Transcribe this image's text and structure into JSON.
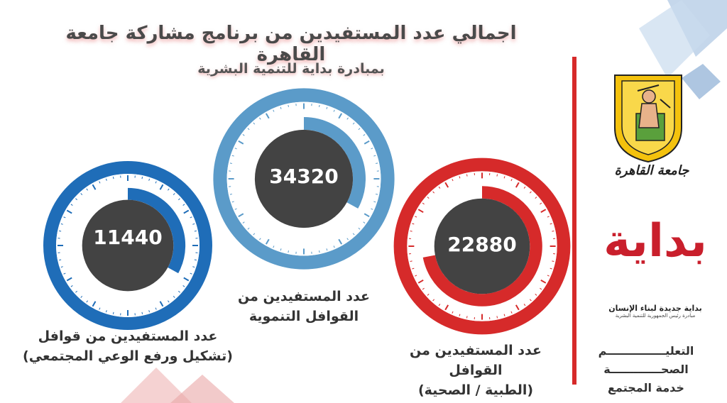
{
  "header": {
    "title": "اجمالي عدد المستفيدين من برنامج مشاركة جامعة القاهرة",
    "subtitle": "بمبادرة بداية للتنمية البشرية"
  },
  "gauges": [
    {
      "value": "11440",
      "caption_line1": "عدد المستفيدين من قوافل",
      "caption_line2": "(تشكيل ورفع الوعي المجتمعي)",
      "color": "#1f6db8",
      "fraction": 0.33
    },
    {
      "value": "34320",
      "caption_line1": "عدد المستفيدين من",
      "caption_line2": "القوافل التنموية",
      "color": "#5b9bc9",
      "fraction": 0.33
    },
    {
      "value": "22880",
      "caption_line1": "عدد المستفيدين من القوافل",
      "caption_line2": "(الطبية / الصحية)",
      "color": "#d62a2a",
      "fraction": 0.72
    }
  ],
  "logos": {
    "cairo_university_text": "جامعة القاهرة",
    "bidaya_logo_text": "بداية",
    "bidaya_tagline": "بداية جديدة لبناء الإنسان",
    "bidaya_subtagline": "مبادرة رئيس الجمهورية للتنمية البشرية"
  },
  "sectors": {
    "line1": "التعليـــــــــــــــم",
    "line2": "الصحـــــــــــــة",
    "line3": "خدمة المجتمع"
  },
  "colors": {
    "dark_circle": "#434343",
    "accent_red": "#d62a2a",
    "accent_blue": "#1f6db8",
    "accent_light_blue": "#5b9bc9"
  }
}
